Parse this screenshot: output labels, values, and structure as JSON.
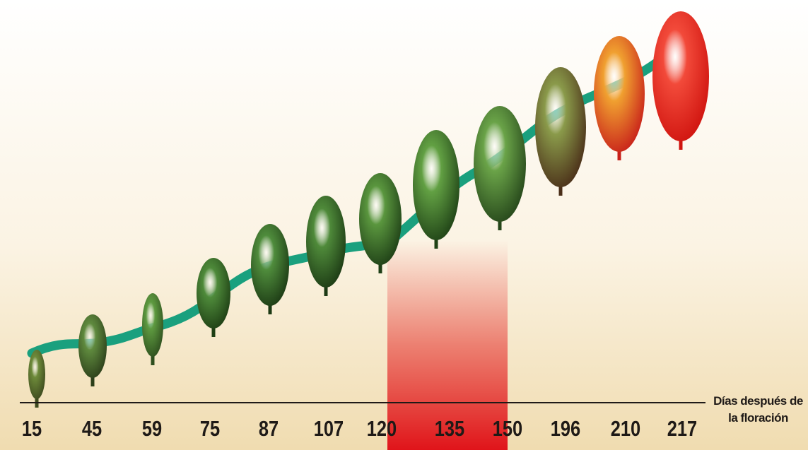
{
  "axis_label": "Días después de la floración",
  "days": [
    15,
    45,
    59,
    75,
    87,
    107,
    120,
    135,
    150,
    196,
    210,
    217
  ]
}
